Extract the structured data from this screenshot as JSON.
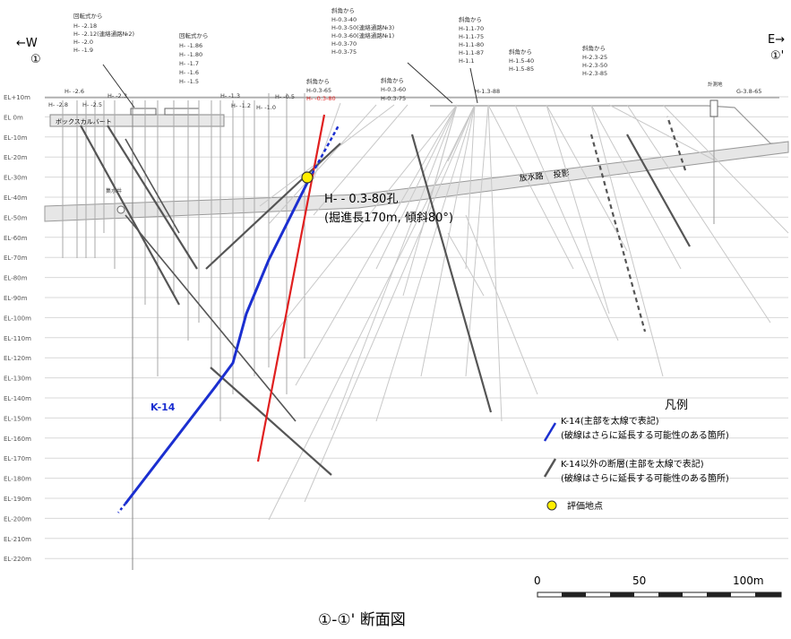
{
  "title": "①-①' 断面図",
  "direction": {
    "west": "←W",
    "west_marker": "①",
    "east": "E→",
    "east_marker": "①'"
  },
  "elevation_labels": [
    "EL+10m",
    "EL 0m",
    "EL-10m",
    "EL-20m",
    "EL-30m",
    "EL-40m",
    "EL-50m",
    "EL-60m",
    "EL-70m",
    "EL-80m",
    "EL-90m",
    "EL-100m",
    "EL-110m",
    "EL-120m",
    "EL-130m",
    "EL-140m",
    "EL-150m",
    "EL-160m",
    "EL-170m",
    "EL-180m",
    "EL-190m",
    "EL-200m",
    "EL-210m",
    "EL-220m"
  ],
  "boreholes": {
    "group1_title": "回転式から",
    "group1": [
      "H- -2.18",
      "H- -2.12(連絡通路№2)",
      "H- -2.0",
      "H- -1.9"
    ],
    "group2_title": "回転式から",
    "group2": [
      "H- -1.86",
      "H- -1.80",
      "H- -1.7",
      "H- -1.6",
      "H- -1.5"
    ],
    "group3_title": "斜角から",
    "group3": [
      "H-0.3-40",
      "H-0.3-50(連絡通路№3)",
      "H-0.3-60(連絡通路№1)",
      "H-0.3-70",
      "H-0.3-75"
    ],
    "group4_title": "斜角から",
    "group4": [
      "H-1.1-70",
      "H-1.1-75",
      "H-1.1-80",
      "H-1.1-87",
      "H-1.1"
    ],
    "group5_title": "斜角から",
    "group5": [
      "H-1.5-40",
      "H-1.5-85"
    ],
    "group6_title": "斜角から",
    "group6": [
      "H-2.3-25",
      "H-2.3-50",
      "H-2.3-85"
    ],
    "group7_title": "斜角から",
    "group7": [
      "H-0.3-65",
      "H- -0.3-80"
    ],
    "group8_title": "斜角から",
    "group8": [
      "H-0.3-60",
      "H-0.3-75"
    ],
    "ground_row": [
      "H- -2.6",
      "H- -2.3",
      "H- -2.8",
      "H- -2.5",
      "H- -1.3",
      "H- -1.2",
      "H- -1.0",
      "H- -0.5"
    ],
    "h13": "H-1.3-88",
    "g": "G-3.8-65",
    "misc": "計測地"
  },
  "structures": {
    "box_culvert": "ボックスカルバート",
    "waterway": "放水路",
    "projection": "投影",
    "drain_well": "集水井"
  },
  "evaluation_point": {
    "label_line1": "H- - 0.3-80孔",
    "label_line2": "(掘進長170m, 傾斜80°)"
  },
  "fault_label": "K-14",
  "legend": {
    "title": "凡例",
    "k14_line1": "K-14(主部を太線で表記)",
    "k14_line2": "(破線はさらに延長する可能性のある箇所)",
    "other_line1": "K-14以外の断層(主部を太線で表記)",
    "other_line2": "(破線はさらに延長する可能性のある箇所)",
    "point": "評価地点"
  },
  "scale": {
    "labels": [
      "0",
      "50",
      "100m"
    ]
  },
  "colors": {
    "k14": "#1b2fd0",
    "borehole_red": "#e02020",
    "point": "#ffee00",
    "other_fault": "#555555"
  }
}
